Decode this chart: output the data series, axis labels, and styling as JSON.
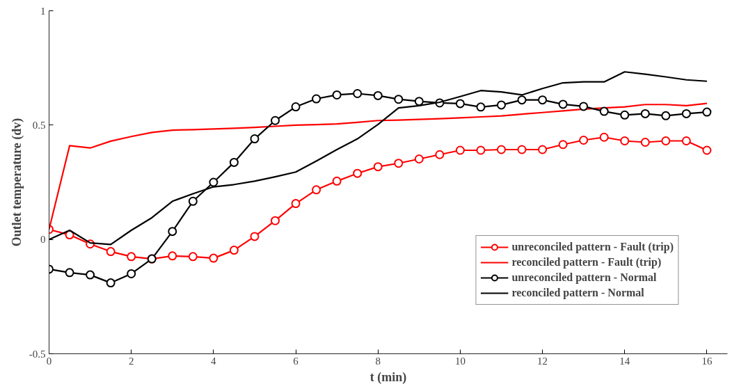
{
  "chart_data": {
    "type": "line",
    "xlabel": "t (min)",
    "ylabel": "Outlet temperature (dv)",
    "x": [
      0,
      0.5,
      1,
      1.5,
      2,
      2.5,
      3,
      3.5,
      4,
      4.5,
      5,
      5.5,
      6,
      6.5,
      7,
      7.5,
      8,
      8.5,
      9,
      9.5,
      10,
      10.5,
      11,
      11.5,
      12,
      12.5,
      13,
      13.5,
      14,
      14.5,
      15,
      15.5,
      16
    ],
    "xlim": [
      0,
      16.5
    ],
    "xticks": [
      0,
      2,
      4,
      6,
      8,
      10,
      12,
      14,
      16
    ],
    "ylim": [
      -0.5,
      1
    ],
    "yticks": [
      -0.5,
      0,
      0.5,
      1
    ],
    "grid": false,
    "legend": "bottom right",
    "series": [
      {
        "name": "unreconciled pattern - Fault (trip)",
        "color": "#ff0000",
        "marker": "circle",
        "values": [
          0.044,
          0.02,
          -0.02,
          -0.053,
          -0.075,
          -0.085,
          -0.072,
          -0.075,
          -0.082,
          -0.047,
          0.013,
          0.082,
          0.157,
          0.217,
          0.255,
          0.289,
          0.318,
          0.333,
          0.352,
          0.371,
          0.39,
          0.39,
          0.393,
          0.393,
          0.393,
          0.415,
          0.434,
          0.447,
          0.431,
          0.425,
          0.431,
          0.431,
          0.39
        ]
      },
      {
        "name": "reconciled pattern - Fault (trip)",
        "color": "#ff0000",
        "marker": "none",
        "values": [
          0.044,
          0.41,
          0.4,
          0.43,
          0.45,
          0.468,
          0.478,
          0.48,
          0.483,
          0.486,
          0.49,
          0.495,
          0.5,
          0.502,
          0.505,
          0.512,
          0.52,
          0.522,
          0.525,
          0.528,
          0.532,
          0.536,
          0.54,
          0.548,
          0.555,
          0.562,
          0.57,
          0.575,
          0.58,
          0.59,
          0.59,
          0.585,
          0.595
        ]
      },
      {
        "name": "unreconciled pattern - Normal",
        "color": "#000000",
        "marker": "circle",
        "values": [
          -0.13,
          -0.145,
          -0.155,
          -0.19,
          -0.15,
          -0.085,
          0.035,
          0.167,
          0.25,
          0.337,
          0.44,
          0.52,
          0.58,
          0.615,
          0.632,
          0.638,
          0.629,
          0.613,
          0.604,
          0.597,
          0.594,
          0.579,
          0.588,
          0.61,
          0.61,
          0.591,
          0.582,
          0.56,
          0.544,
          0.55,
          0.541,
          0.55,
          0.557
        ]
      },
      {
        "name": "reconciled pattern - Normal",
        "color": "#000000",
        "marker": "none",
        "values": [
          0,
          0.04,
          -0.015,
          -0.022,
          0.04,
          0.095,
          0.167,
          0.2,
          0.23,
          0.24,
          0.255,
          0.274,
          0.295,
          0.343,
          0.393,
          0.44,
          0.503,
          0.575,
          0.585,
          0.6,
          0.625,
          0.651,
          0.645,
          0.632,
          0.66,
          0.685,
          0.689,
          0.689,
          0.733,
          0.723,
          0.711,
          0.698,
          0.692
        ]
      }
    ]
  }
}
